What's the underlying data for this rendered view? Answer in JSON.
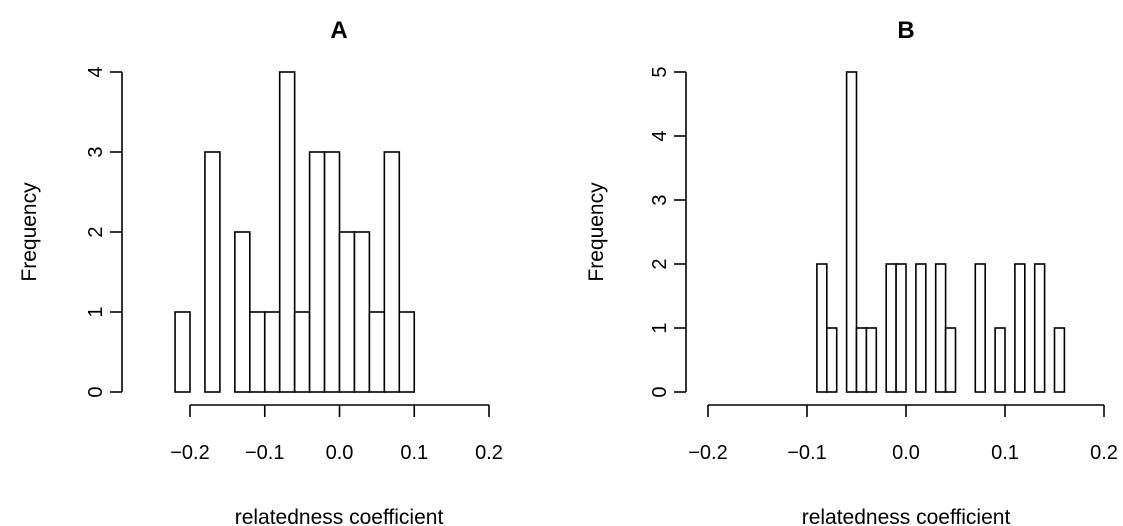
{
  "chart_data": [
    {
      "type": "bar",
      "title": "A",
      "xlabel": "relatedness coefficient",
      "ylabel": "Frequency",
      "xlim": [
        -0.2,
        0.2
      ],
      "xticks": [
        "-0.2",
        "-0.1",
        "0.0",
        "0.1",
        "0.2"
      ],
      "ylim": [
        0,
        4
      ],
      "yticks": [
        "0",
        "1",
        "2",
        "3",
        "4"
      ],
      "bin_width": 0.02,
      "bins": [
        {
          "start": -0.22,
          "count": 1
        },
        {
          "start": -0.2,
          "count": 0
        },
        {
          "start": -0.18,
          "count": 3
        },
        {
          "start": -0.16,
          "count": 0
        },
        {
          "start": -0.14,
          "count": 2
        },
        {
          "start": -0.12,
          "count": 1
        },
        {
          "start": -0.1,
          "count": 1
        },
        {
          "start": -0.08,
          "count": 4
        },
        {
          "start": -0.06,
          "count": 1
        },
        {
          "start": -0.04,
          "count": 3
        },
        {
          "start": -0.02,
          "count": 3
        },
        {
          "start": 0.0,
          "count": 2
        },
        {
          "start": 0.02,
          "count": 2
        },
        {
          "start": 0.04,
          "count": 1
        },
        {
          "start": 0.06,
          "count": 3
        },
        {
          "start": 0.08,
          "count": 1
        }
      ]
    },
    {
      "type": "bar",
      "title": "B",
      "xlabel": "relatedness coefficient",
      "ylabel": "Frequency",
      "xlim": [
        -0.2,
        0.2
      ],
      "xticks": [
        "-0.2",
        "-0.1",
        "0.0",
        "0.1",
        "0.2"
      ],
      "ylim": [
        0,
        5
      ],
      "yticks": [
        "0",
        "1",
        "2",
        "3",
        "4",
        "5"
      ],
      "bin_width": 0.01,
      "bins": [
        {
          "start": -0.09,
          "count": 2
        },
        {
          "start": -0.08,
          "count": 1
        },
        {
          "start": -0.07,
          "count": 0
        },
        {
          "start": -0.06,
          "count": 5
        },
        {
          "start": -0.05,
          "count": 1
        },
        {
          "start": -0.04,
          "count": 1
        },
        {
          "start": -0.03,
          "count": 0
        },
        {
          "start": -0.02,
          "count": 2
        },
        {
          "start": -0.01,
          "count": 2
        },
        {
          "start": 0.0,
          "count": 0
        },
        {
          "start": 0.01,
          "count": 2
        },
        {
          "start": 0.02,
          "count": 0
        },
        {
          "start": 0.03,
          "count": 2
        },
        {
          "start": 0.04,
          "count": 1
        },
        {
          "start": 0.05,
          "count": 0
        },
        {
          "start": 0.06,
          "count": 0
        },
        {
          "start": 0.07,
          "count": 2
        },
        {
          "start": 0.08,
          "count": 0
        },
        {
          "start": 0.09,
          "count": 1
        },
        {
          "start": 0.1,
          "count": 0
        },
        {
          "start": 0.11,
          "count": 2
        },
        {
          "start": 0.12,
          "count": 0
        },
        {
          "start": 0.13,
          "count": 2
        },
        {
          "start": 0.14,
          "count": 0
        },
        {
          "start": 0.15,
          "count": 1
        }
      ]
    }
  ]
}
